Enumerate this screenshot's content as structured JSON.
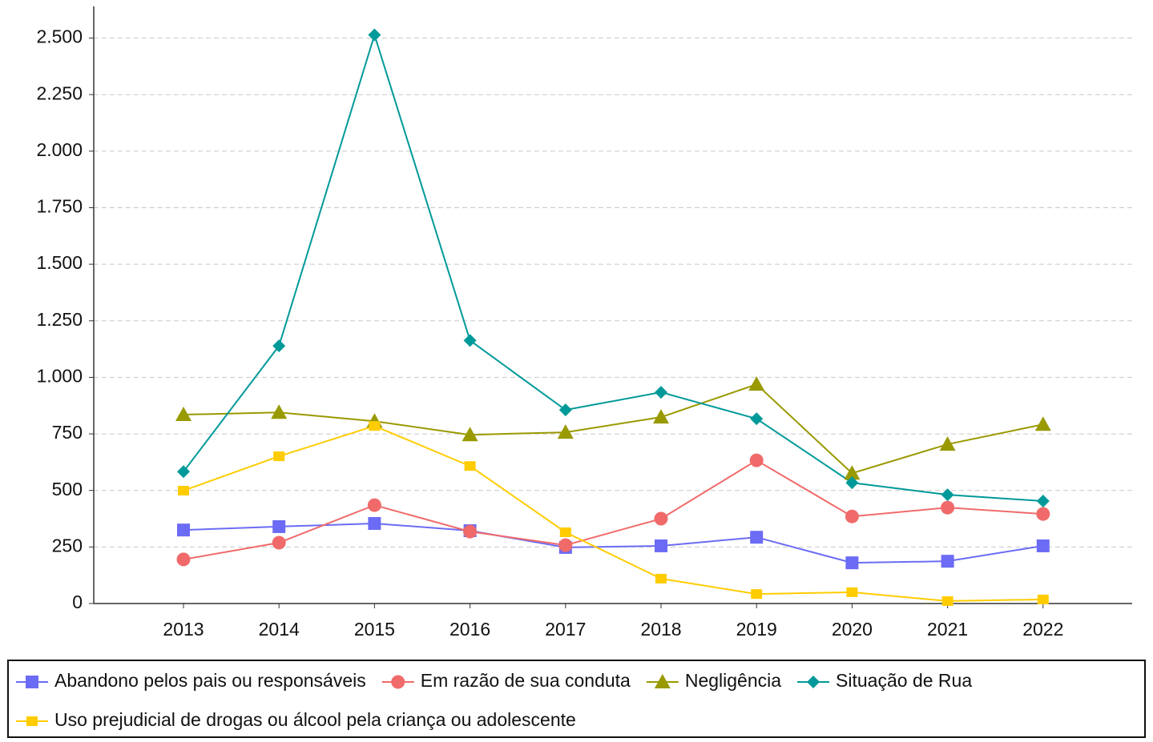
{
  "chart_data": {
    "type": "line",
    "categories": [
      "2013",
      "2014",
      "2015",
      "2016",
      "2017",
      "2018",
      "2019",
      "2020",
      "2021",
      "2022"
    ],
    "series": [
      {
        "name": "Abandono pelos pais ou responsáveis",
        "color": "#6b6bf5",
        "marker": "square",
        "values": [
          325,
          340,
          354,
          322,
          248,
          255,
          293,
          180,
          187,
          255
        ]
      },
      {
        "name": "Em razão de sua conduta",
        "color": "#f06a6a",
        "marker": "circle",
        "values": [
          195,
          269,
          435,
          318,
          258,
          375,
          633,
          385,
          424,
          396
        ]
      },
      {
        "name": "Negligência",
        "color": "#999900",
        "marker": "triangle",
        "values": [
          835,
          845,
          806,
          746,
          757,
          824,
          969,
          576,
          704,
          792
        ]
      },
      {
        "name": "Situação de Rua",
        "color": "#009999",
        "marker": "diamond",
        "values": [
          583,
          1139,
          2514,
          1163,
          856,
          934,
          817,
          534,
          481,
          453
        ]
      },
      {
        "name": "Uso prejudicial de drogas ou álcool pela criança ou adolescente",
        "color": "#ffcc00",
        "marker": "small-square",
        "values": [
          499,
          651,
          785,
          608,
          315,
          110,
          42,
          50,
          11,
          18
        ]
      }
    ],
    "ylim": [
      0,
      2640
    ],
    "yticks": [
      0,
      250,
      500,
      750,
      {
        "value": 1000,
        "label": "1.000"
      },
      {
        "value": 1250,
        "label": "1.250"
      },
      {
        "value": 1500,
        "label": "1.500"
      },
      {
        "value": 1750,
        "label": "1.750"
      },
      {
        "value": 2000,
        "label": "2.000"
      },
      {
        "value": 2250,
        "label": "2.250"
      },
      {
        "value": 2500,
        "label": "2.500"
      }
    ],
    "grid": true,
    "legend": "bottom"
  }
}
